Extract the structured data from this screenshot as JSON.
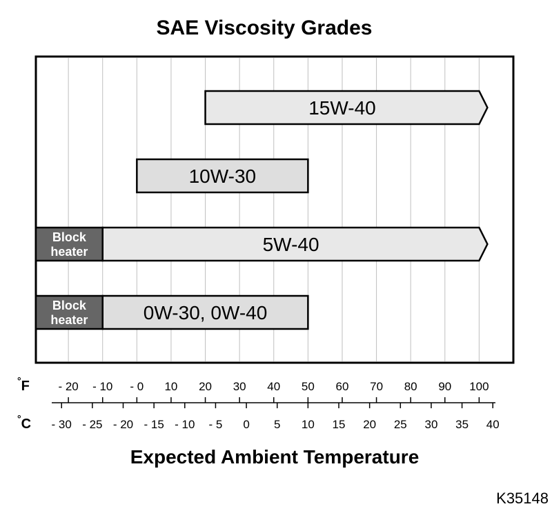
{
  "chart_data": {
    "type": "bar",
    "title": "SAE Viscosity Grades",
    "xlabel": "Expected Ambient Temperature",
    "x_unit_primary": "F",
    "x_unit_secondary": "C",
    "xlim": [
      -29.5,
      110
    ],
    "grid": true,
    "fahrenheit_ticks": [
      {
        "value": -20,
        "label": "- 20"
      },
      {
        "value": -10,
        "label": "- 10"
      },
      {
        "value": 0,
        "label": "- 0"
      },
      {
        "value": 10,
        "label": "10"
      },
      {
        "value": 20,
        "label": "20"
      },
      {
        "value": 30,
        "label": "30"
      },
      {
        "value": 40,
        "label": "40"
      },
      {
        "value": 50,
        "label": "50"
      },
      {
        "value": 60,
        "label": "60"
      },
      {
        "value": 70,
        "label": "70"
      },
      {
        "value": 80,
        "label": "80"
      },
      {
        "value": 90,
        "label": "90"
      },
      {
        "value": 100,
        "label": "100"
      }
    ],
    "celsius_ticks": [
      {
        "value": -30,
        "label": "- 30"
      },
      {
        "value": -25,
        "label": "- 25"
      },
      {
        "value": -20,
        "label": "- 20"
      },
      {
        "value": -15,
        "label": "- 15"
      },
      {
        "value": -10,
        "label": "- 10"
      },
      {
        "value": -5,
        "label": "- 5"
      },
      {
        "value": 0,
        "label": "0"
      },
      {
        "value": 5,
        "label": "5"
      },
      {
        "value": 10,
        "label": "10"
      },
      {
        "value": 15,
        "label": "15"
      },
      {
        "value": 20,
        "label": "20"
      },
      {
        "value": 25,
        "label": "25"
      },
      {
        "value": 30,
        "label": "30"
      },
      {
        "value": 35,
        "label": "35"
      },
      {
        "value": 40,
        "label": "40"
      }
    ],
    "bars": [
      {
        "label": "15W-40",
        "start_f": 20,
        "end_f": 100,
        "open_ended": true,
        "block_heater": null
      },
      {
        "label": "10W-30",
        "start_f": 0,
        "end_f": 50,
        "open_ended": false,
        "block_heater": null
      },
      {
        "label": "5W-40",
        "start_f": -10,
        "end_f": 100,
        "open_ended": true,
        "block_heater": {
          "lines": [
            "Block",
            "heater"
          ]
        }
      },
      {
        "label": "0W-30, 0W-40",
        "start_f": -10,
        "end_f": 50,
        "open_ended": false,
        "block_heater": {
          "lines": [
            "Block",
            "heater"
          ]
        }
      }
    ],
    "colors": {
      "bar": "#e8e8e8",
      "bar_short": "#dedede",
      "block_heater": "#666666",
      "grid": "#bfbfbf"
    }
  },
  "figure_code": "K35148"
}
